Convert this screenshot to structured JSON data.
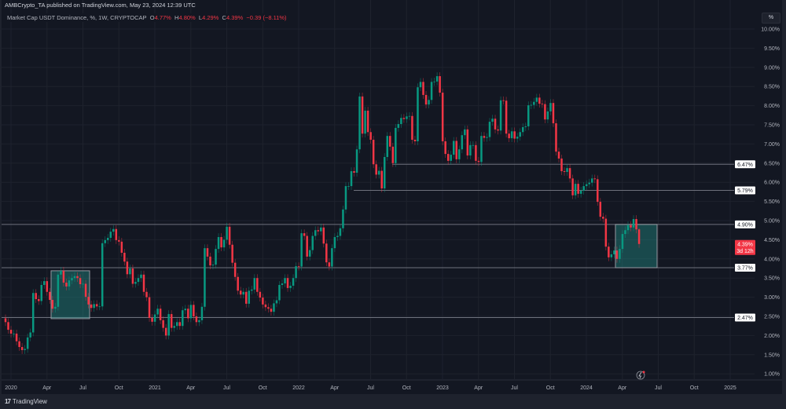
{
  "header": {
    "published": "AMBCrypto_TA published on TradingView.com, May 23, 2024 12:39 UTC",
    "symbol": "Market Cap USDT Dominance, %, 1W, CRYPTOCAP",
    "o_label": "O",
    "o_value": "4.77%",
    "h_label": "H",
    "h_value": "4.80%",
    "l_label": "L",
    "l_value": "4.29%",
    "c_label": "C",
    "c_value": "4.39%",
    "change": "−0.39 (−8.11%)"
  },
  "scale_button": "%",
  "footer": {
    "brand": "TradingView",
    "logo_icon": "tradingview-logo-icon"
  },
  "chart_data": {
    "type": "candlestick",
    "interval": "1W",
    "ylim": [
      1.0,
      10.0
    ],
    "y_unit": "%",
    "grid": true,
    "colors": {
      "up": "#089981",
      "down": "#f23645",
      "background": "#131722",
      "box": "#26a69a"
    },
    "y_ticks": [
      "10.00%",
      "9.50%",
      "9.00%",
      "8.50%",
      "8.00%",
      "7.50%",
      "7.00%",
      "6.50%",
      "6.00%",
      "5.50%",
      "5.00%",
      "4.50%",
      "4.00%",
      "3.50%",
      "3.00%",
      "2.50%",
      "2.00%",
      "1.50%",
      "1.00%"
    ],
    "x_ticks": [
      "2020",
      "Apr",
      "Jul",
      "Oct",
      "2021",
      "Apr",
      "Jul",
      "Oct",
      "2022",
      "Apr",
      "Jul",
      "Oct",
      "2023",
      "Apr",
      "Jul",
      "Oct",
      "2024",
      "Apr",
      "Jul",
      "Oct",
      "2025"
    ],
    "first_open": 2.45,
    "closes": [
      2.35,
      2.15,
      2.05,
      2.05,
      1.85,
      1.7,
      1.62,
      1.65,
      1.95,
      2.08,
      3.11,
      2.95,
      2.9,
      3.32,
      3.42,
      3.14,
      2.93,
      2.7,
      2.75,
      3.59,
      3.69,
      3.38,
      3.28,
      3.44,
      3.5,
      3.55,
      3.5,
      3.34,
      3.35,
      3.01,
      2.81,
      2.72,
      2.82,
      2.76,
      2.76,
      4.41,
      4.49,
      4.55,
      4.71,
      4.78,
      4.49,
      4.45,
      4.16,
      3.93,
      3.6,
      3.75,
      3.35,
      3.4,
      3.5,
      3.59,
      3.14,
      3.0,
      2.46,
      2.36,
      2.55,
      2.7,
      2.4,
      2.2,
      2.0,
      2.56,
      2.2,
      2.25,
      2.35,
      2.25,
      2.66,
      2.7,
      2.45,
      2.8,
      2.5,
      2.35,
      2.4,
      2.75,
      4.28,
      4.06,
      3.83,
      3.85,
      4.26,
      4.57,
      4.3,
      4.5,
      4.84,
      4.37,
      3.9,
      3.53,
      3.17,
      3.07,
      3.14,
      2.83,
      3.17,
      3.2,
      3.5,
      3.14,
      2.99,
      2.81,
      2.74,
      2.7,
      2.62,
      2.84,
      2.92,
      3.32,
      3.36,
      3.5,
      3.24,
      3.3,
      3.5,
      3.81,
      3.8,
      4.67,
      4.6,
      4.06,
      4.23,
      4.6,
      4.75,
      4.72,
      4.82,
      4.4,
      3.91,
      3.8,
      4.28,
      4.57,
      4.6,
      4.8,
      5.29,
      5.9,
      5.9,
      6.29,
      6.25,
      6.86,
      8.24,
      7.27,
      7.87,
      7.31,
      7.11,
      6.47,
      6.2,
      6.3,
      5.84,
      6.66,
      7.21,
      6.93,
      6.5,
      7.42,
      7.52,
      7.68,
      7.65,
      7.72,
      7.73,
      7.11,
      7.07,
      8.48,
      8.62,
      8.28,
      8.03,
      8.15,
      8.62,
      8.63,
      8.77,
      8.34,
      7.07,
      6.74,
      6.56,
      6.72,
      7.08,
      6.6,
      6.86,
      7.23,
      7.38,
      6.7,
      6.97,
      6.97,
      6.56,
      6.53,
      7.21,
      7.16,
      7.18,
      7.58,
      7.66,
      7.38,
      7.35,
      8.14,
      8.13,
      7.27,
      7.15,
      7.33,
      7.14,
      7.19,
      7.31,
      7.44,
      7.46,
      8.01,
      8.02,
      8.1,
      8.21,
      8.05,
      8.04,
      7.64,
      7.85,
      8.07,
      7.54,
      6.8,
      6.62,
      6.29,
      6.27,
      6.37,
      6.1,
      5.66,
      5.96,
      5.7,
      5.78,
      5.9,
      5.95,
      5.99,
      6.1,
      6.08,
      5.49,
      5.1,
      5.05,
      4.32,
      4.04,
      4.12,
      4.22,
      4.0,
      4.26,
      4.65,
      4.75,
      4.88,
      4.82,
      5.04,
      4.77,
      4.39
    ],
    "last_candle": {
      "open": 4.77,
      "high": 4.8,
      "low": 4.29,
      "close": 4.39
    },
    "levels": [
      {
        "value": 6.47,
        "label": "6.47%"
      },
      {
        "value": 5.79,
        "label": "5.79%"
      },
      {
        "value": 4.9,
        "label": "4.90%"
      },
      {
        "value": 3.77,
        "label": "3.77%"
      },
      {
        "value": 2.47,
        "label": "2.47%"
      }
    ],
    "boxes": [
      {
        "top": 3.69,
        "bottom": 2.44,
        "from": "Apr 2020",
        "to": "Jul 2020"
      },
      {
        "top": 4.9,
        "bottom": 3.77,
        "from": "Mar 2024",
        "to": "Jul 2024"
      }
    ],
    "current_price": {
      "label": "4.39%",
      "countdown": "3d 12h"
    }
  }
}
